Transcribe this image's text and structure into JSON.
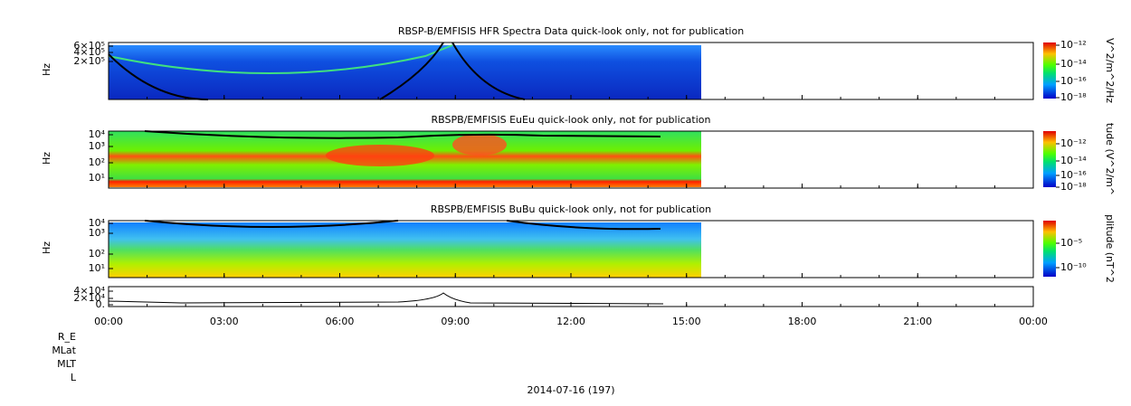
{
  "panels": [
    {
      "title": "RBSP-B/EMFISIS  HFR Spectra Data quick-look only, not for publication",
      "y_label": "Hz",
      "yticks": [
        "6×10⁵",
        "4×10⁵",
        "2×10⁵"
      ],
      "colorbar_ticks": [
        "10⁻¹²",
        "10⁻¹⁴",
        "10⁻¹⁶",
        "10⁻¹⁸"
      ],
      "colorbar_label": "V^2/m^2/Hz"
    },
    {
      "title": "RBSPB/EMFISIS  EuEu quick-look only, not for publication",
      "y_label": "Hz",
      "yticks": [
        "10⁴",
        "10³",
        "10²",
        "10¹"
      ],
      "colorbar_ticks": [
        "10⁻¹²",
        "10⁻¹⁴",
        "10⁻¹⁶",
        "10⁻¹⁸"
      ],
      "colorbar_label": "tude (V^2/m^"
    },
    {
      "title": "RBSPB/EMFISIS  BuBu quick-look only, not for publication",
      "y_label": "Hz",
      "yticks": [
        "10⁴",
        "10³",
        "10²",
        "10¹"
      ],
      "colorbar_ticks": [
        "10⁻⁵",
        "10⁻¹⁰"
      ],
      "colorbar_label": "plitude (nT^2"
    },
    {
      "yticks": [
        "4×10⁴",
        "2×10⁴",
        "0."
      ]
    }
  ],
  "time_ticks": [
    "00:00",
    "03:00",
    "06:00",
    "09:00",
    "12:00",
    "15:00",
    "18:00",
    "21:00",
    "00:00"
  ],
  "ephemeris_labels": [
    "R_E",
    "MLat",
    "MLT",
    "L"
  ],
  "date": "2014-07-16 (197)"
}
